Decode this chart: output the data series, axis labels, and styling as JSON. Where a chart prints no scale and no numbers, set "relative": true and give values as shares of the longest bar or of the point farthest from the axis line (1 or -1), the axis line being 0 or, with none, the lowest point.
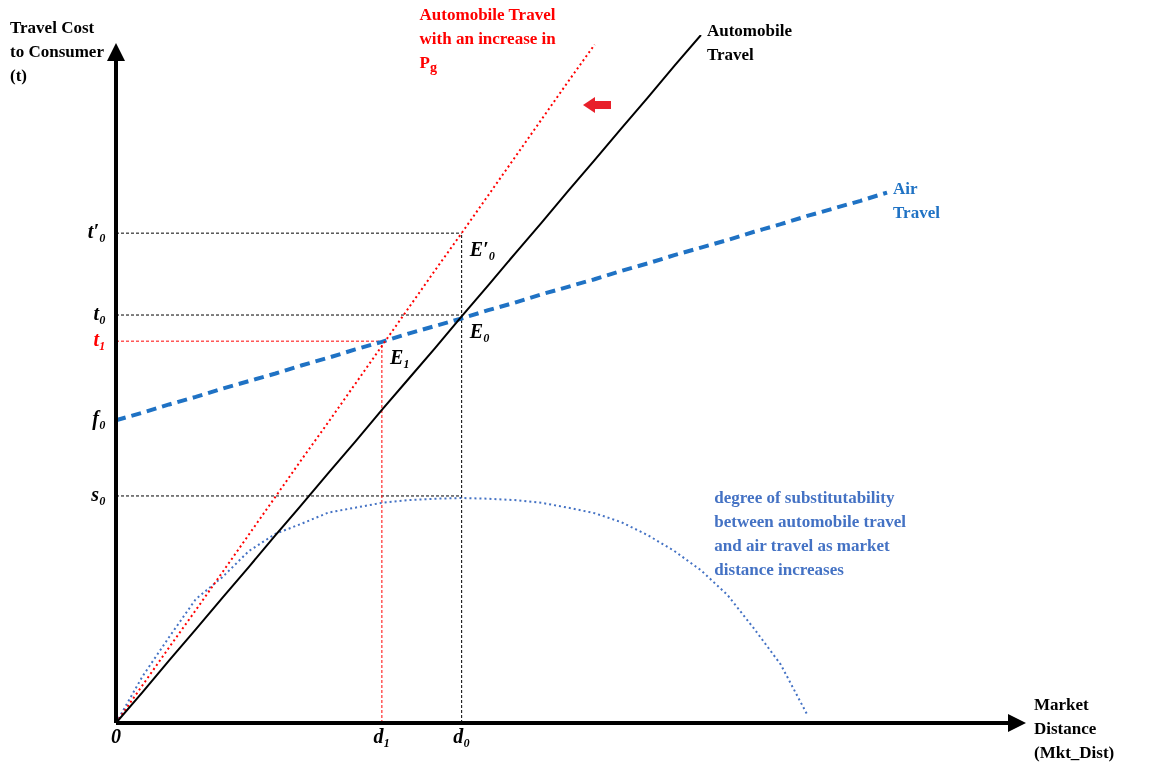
{
  "chart_data": {
    "type": "line",
    "relative": true,
    "xlabel": "Market Distance (Mkt_Dist)",
    "ylabel": "Travel Cost to Consumer (t)",
    "legend": false,
    "marker": "none",
    "categories": [
      "0",
      null,
      null,
      null,
      null,
      null,
      null,
      null,
      null,
      null,
      "d₁",
      null,
      null,
      "d₀",
      null,
      null,
      null,
      null,
      null,
      null,
      null,
      null,
      null,
      null,
      null,
      null,
      null,
      null,
      null,
      null,
      null,
      null,
      null,
      null,
      null
    ],
    "series": [
      {
        "name": "Automobile Travel",
        "color": "#000000",
        "line_style": "solid",
        "values": [
          0,
          0.045,
          0.091,
          0.136,
          0.182,
          0.227,
          0.273,
          0.318,
          0.364,
          0.409,
          0.455,
          0.5,
          0.545,
          0.591,
          0.636,
          0.682,
          0.727,
          0.773,
          0.818,
          0.864,
          0.909,
          0.955,
          1,
          null,
          null,
          null,
          null,
          null,
          null,
          null,
          null,
          null,
          null,
          null,
          null
        ]
      },
      {
        "name": "Automobile Travel with an increase in P$_{g}$",
        "color": "#ff0000",
        "line_style": "dotted",
        "values": [
          0,
          0.055,
          0.11,
          0.164,
          0.219,
          0.274,
          0.329,
          0.384,
          0.438,
          0.493,
          0.548,
          0.603,
          0.658,
          0.712,
          0.767,
          0.822,
          0.877,
          0.932,
          0.986,
          null,
          null,
          null,
          null,
          null,
          null,
          null,
          null,
          null,
          null,
          null,
          null,
          null,
          null,
          null,
          null
        ]
      },
      {
        "name": "Air Travel",
        "color": "#1f72c4",
        "line_style": "dashed",
        "values": [
          0.44,
          0.451,
          0.463,
          0.474,
          0.486,
          0.497,
          0.508,
          0.52,
          0.531,
          0.543,
          0.554,
          0.566,
          0.577,
          0.588,
          0.6,
          0.611,
          0.623,
          0.634,
          0.645,
          0.657,
          0.668,
          0.68,
          0.691,
          0.702,
          0.714,
          0.725,
          0.737,
          0.748,
          0.759,
          0.771,
          null,
          null,
          null,
          null,
          null
        ]
      },
      {
        "name": "degree of substitutability between automobile travel and air travel as market distance increases",
        "color": "#4472c4",
        "line_style": "dotted",
        "values": [
          0,
          0.068,
          0.125,
          0.18,
          0.212,
          0.25,
          0.275,
          0.29,
          0.306,
          0.313,
          0.32,
          0.324,
          0.326,
          0.327,
          0.326,
          0.324,
          0.32,
          0.313,
          0.305,
          0.292,
          0.273,
          0.25,
          0.222,
          0.186,
          0.137,
          0.085,
          0.012,
          null,
          null,
          null,
          null,
          null,
          null,
          null,
          null
        ]
      }
    ],
    "ref_lines": [
      {
        "axis": "y",
        "value": 0.712,
        "label": "t′₀",
        "color": "#000000",
        "line_style": "dashed"
      },
      {
        "axis": "y",
        "value": 0.593,
        "label": "t₀",
        "color": "#000000",
        "line_style": "dashed"
      },
      {
        "axis": "y",
        "value": 0.555,
        "label": "t₁",
        "color": "#ff0000",
        "line_style": "dashed"
      },
      {
        "axis": "y",
        "value": 0.33,
        "label": "s₀",
        "color": "#000000",
        "line_style": "dashed"
      },
      {
        "axis": "x",
        "value": "d₁",
        "color": "#ff0000",
        "line_style": "dashed"
      },
      {
        "axis": "x",
        "value": "d₀",
        "color": "#000000",
        "line_style": "dashed"
      }
    ],
    "annotations": [
      {
        "text": "f₀",
        "x": "0",
        "y": 0.44
      },
      {
        "text": "E′₀",
        "x": "d₀",
        "y": 0.712
      },
      {
        "text": "E₀",
        "x": "d₀",
        "y": 0.593
      },
      {
        "text": "E₁",
        "x": "d₁",
        "y": 0.555
      }
    ]
  }
}
